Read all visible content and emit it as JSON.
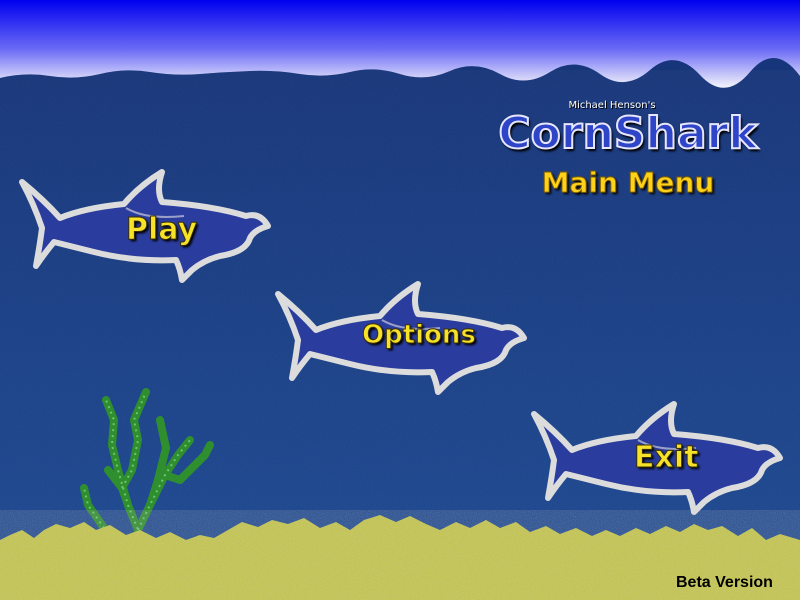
{
  "game": {
    "byline": "Michael Henson's",
    "title": "CornShark",
    "menu_heading": "Main Menu",
    "version_label": "Beta Version"
  },
  "menu": {
    "play_label": "Play",
    "options_label": "Options",
    "exit_label": "Exit"
  },
  "colors": {
    "sky_top": "#0000f0",
    "sky_bottom": "#ffffff",
    "water": "#1a3f86",
    "sand": "#c9c94a",
    "seaweed": "#2e8b2e",
    "shark_body": "#2a3d9e",
    "shark_outline": "#d8d8d8",
    "label_gold": "#f7e22a"
  }
}
